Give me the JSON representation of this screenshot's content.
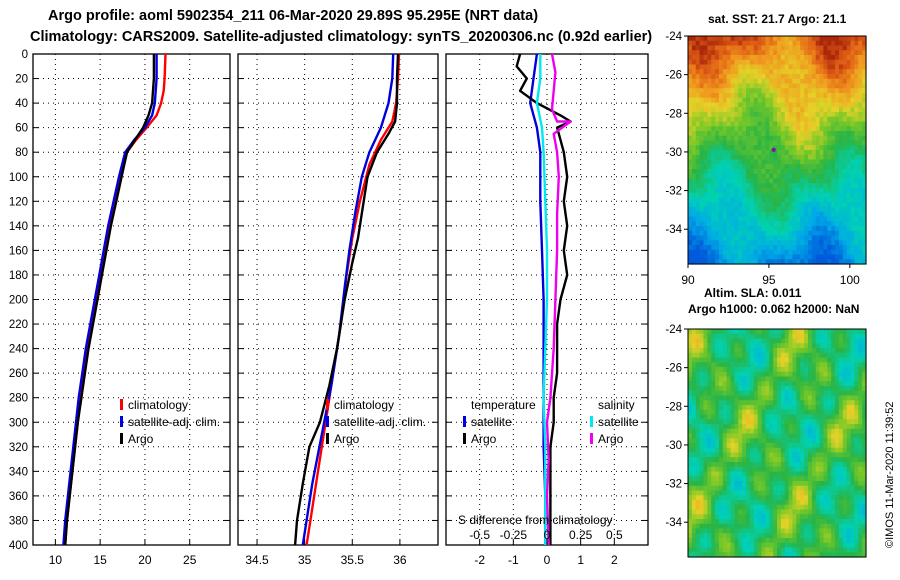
{
  "header": {
    "line1": "Argo profile: aoml 5902354_211 06-Mar-2020 29.89S 95.295E (NRT data)",
    "line2": "Climatology: CARS2009. Satellite-adjusted climatology: synTS_20200306.nc (0.92d earlier)"
  },
  "credit": "©IMOS 11-Mar-2020 11:39:52",
  "colors": {
    "climatology": "#ff0000",
    "satellite": "#0000dd",
    "argo": "#000000",
    "sat_salinity": "#00e8f0",
    "argo_salinity": "#ee00ee"
  },
  "chart_data": [
    {
      "type": "line",
      "name": "temperature-profile",
      "xlim": [
        7.5,
        29.5
      ],
      "xticks": [
        10,
        15,
        20,
        25
      ],
      "xtick_labels": [
        "10",
        "15",
        "20",
        "25"
      ],
      "ylim": [
        0,
        400
      ],
      "yticks": [
        0,
        20,
        40,
        60,
        80,
        100,
        120,
        140,
        160,
        180,
        200,
        220,
        240,
        260,
        280,
        300,
        320,
        340,
        360,
        380,
        400
      ],
      "grid": true,
      "legend": {
        "position": "bottom-right",
        "entries": [
          "climatology",
          "satellite-adj. clim.",
          "Argo"
        ]
      },
      "series": [
        {
          "name": "climatology",
          "color": "#ff0000",
          "points": [
            [
              22.3,
              0
            ],
            [
              22.2,
              20
            ],
            [
              22.1,
              30
            ],
            [
              21.8,
              40
            ],
            [
              21.3,
              50
            ],
            [
              20.2,
              60
            ],
            [
              19.0,
              70
            ],
            [
              18.0,
              80
            ],
            [
              17.3,
              100
            ],
            [
              16.7,
              120
            ],
            [
              16.0,
              140
            ],
            [
              15.5,
              160
            ],
            [
              15.0,
              180
            ],
            [
              14.5,
              200
            ],
            [
              14.0,
              220
            ],
            [
              13.5,
              240
            ],
            [
              13.2,
              260
            ],
            [
              12.8,
              280
            ],
            [
              12.5,
              300
            ],
            [
              12.2,
              320
            ],
            [
              11.9,
              340
            ],
            [
              11.6,
              360
            ],
            [
              11.3,
              380
            ],
            [
              11.1,
              400
            ]
          ]
        },
        {
          "name": "satellite-adj. clim.",
          "color": "#0000dd",
          "points": [
            [
              21.3,
              0
            ],
            [
              21.3,
              20
            ],
            [
              21.2,
              30
            ],
            [
              21.1,
              40
            ],
            [
              20.8,
              50
            ],
            [
              20.0,
              60
            ],
            [
              18.8,
              70
            ],
            [
              17.8,
              80
            ],
            [
              17.1,
              100
            ],
            [
              16.5,
              120
            ],
            [
              15.9,
              140
            ],
            [
              15.4,
              160
            ],
            [
              14.9,
              180
            ],
            [
              14.4,
              200
            ],
            [
              13.9,
              220
            ],
            [
              13.4,
              240
            ],
            [
              13.0,
              260
            ],
            [
              12.6,
              280
            ],
            [
              12.3,
              300
            ],
            [
              12.0,
              320
            ],
            [
              11.7,
              340
            ],
            [
              11.4,
              360
            ],
            [
              11.1,
              380
            ],
            [
              10.9,
              400
            ]
          ]
        },
        {
          "name": "Argo",
          "color": "#000000",
          "points": [
            [
              21.0,
              0
            ],
            [
              21.0,
              20
            ],
            [
              20.9,
              30
            ],
            [
              20.8,
              40
            ],
            [
              20.4,
              50
            ],
            [
              19.8,
              60
            ],
            [
              18.9,
              70
            ],
            [
              18.0,
              80
            ],
            [
              17.4,
              100
            ],
            [
              16.8,
              120
            ],
            [
              16.2,
              140
            ],
            [
              15.7,
              160
            ],
            [
              15.2,
              180
            ],
            [
              14.7,
              200
            ],
            [
              14.2,
              220
            ],
            [
              13.7,
              240
            ],
            [
              13.3,
              260
            ],
            [
              12.9,
              280
            ],
            [
              12.5,
              300
            ],
            [
              12.2,
              320
            ],
            [
              11.9,
              340
            ],
            [
              11.6,
              360
            ],
            [
              11.3,
              380
            ],
            [
              11.1,
              400
            ]
          ]
        }
      ]
    },
    {
      "type": "line",
      "name": "salinity-profile",
      "xlim": [
        34.3,
        36.4
      ],
      "xticks": [
        34.5,
        35,
        35.5,
        36
      ],
      "xtick_labels": [
        "34.5",
        "35",
        "35.5",
        "36"
      ],
      "ylim": [
        0,
        400
      ],
      "grid": true,
      "legend": {
        "position": "bottom-right",
        "entries": [
          "climatology",
          "satellite-adj. clim.",
          "Argo"
        ]
      },
      "series": [
        {
          "name": "climatology",
          "color": "#ff0000",
          "points": [
            [
              35.99,
              0
            ],
            [
              35.98,
              20
            ],
            [
              35.96,
              40
            ],
            [
              35.92,
              55
            ],
            [
              35.8,
              70
            ],
            [
              35.68,
              90
            ],
            [
              35.58,
              120
            ],
            [
              35.5,
              150
            ],
            [
              35.44,
              180
            ],
            [
              35.38,
              220
            ],
            [
              35.3,
              260
            ],
            [
              35.22,
              300
            ],
            [
              35.14,
              340
            ],
            [
              35.06,
              380
            ],
            [
              35.02,
              400
            ]
          ]
        },
        {
          "name": "satellite-adj. clim.",
          "color": "#0000dd",
          "points": [
            [
              35.93,
              0
            ],
            [
              35.92,
              20
            ],
            [
              35.88,
              40
            ],
            [
              35.8,
              60
            ],
            [
              35.68,
              80
            ],
            [
              35.6,
              100
            ],
            [
              35.53,
              130
            ],
            [
              35.47,
              160
            ],
            [
              35.42,
              190
            ],
            [
              35.36,
              230
            ],
            [
              35.28,
              270
            ],
            [
              35.18,
              310
            ],
            [
              35.08,
              350
            ],
            [
              35.0,
              390
            ],
            [
              34.98,
              400
            ]
          ]
        },
        {
          "name": "Argo",
          "color": "#000000",
          "points": [
            [
              35.98,
              0
            ],
            [
              35.97,
              20
            ],
            [
              35.97,
              40
            ],
            [
              35.95,
              55
            ],
            [
              35.88,
              65
            ],
            [
              35.76,
              80
            ],
            [
              35.66,
              100
            ],
            [
              35.6,
              130
            ],
            [
              35.56,
              150
            ],
            [
              35.5,
              170
            ],
            [
              35.42,
              200
            ],
            [
              35.34,
              240
            ],
            [
              35.26,
              270
            ],
            [
              35.16,
              300
            ],
            [
              35.05,
              320
            ],
            [
              34.98,
              350
            ],
            [
              34.92,
              380
            ],
            [
              34.9,
              400
            ]
          ]
        }
      ]
    },
    {
      "type": "line",
      "name": "difference-from-climatology",
      "title": "S difference from climatology",
      "xlim": [
        -3.0,
        3.0
      ],
      "xticks": [
        -2,
        -1,
        0,
        1,
        2
      ],
      "xtick_labels": [
        "-2",
        "-1",
        "0",
        "1",
        "2"
      ],
      "secondary_xticks": [
        -0.5,
        -0.25,
        0,
        0.25,
        0.5
      ],
      "secondary_xtick_labels": [
        "-0.5",
        "-0.25",
        "0",
        "0.25",
        "0.5"
      ],
      "secondary_scale_factor": 4,
      "ylim": [
        0,
        400
      ],
      "grid": true,
      "legend_temperature": {
        "title": "temperature",
        "entries": [
          "satellite",
          "Argo"
        ]
      },
      "legend_salinity": {
        "title": "salinity",
        "entries": [
          "satellite",
          "Argo"
        ]
      },
      "series": [
        {
          "name": "temperature satellite",
          "color": "#0000dd",
          "points": [
            [
              -0.3,
              0
            ],
            [
              -0.4,
              20
            ],
            [
              -0.5,
              40
            ],
            [
              -0.3,
              60
            ],
            [
              -0.2,
              80
            ],
            [
              -0.2,
              120
            ],
            [
              -0.15,
              160
            ],
            [
              -0.1,
              200
            ],
            [
              -0.1,
              240
            ],
            [
              -0.1,
              280
            ],
            [
              -0.1,
              320
            ],
            [
              -0.05,
              360
            ],
            [
              -0.05,
              400
            ]
          ]
        },
        {
          "name": "temperature Argo",
          "color": "#000000",
          "points": [
            [
              -0.8,
              0
            ],
            [
              -0.9,
              10
            ],
            [
              -0.6,
              20
            ],
            [
              -0.8,
              30
            ],
            [
              -0.3,
              40
            ],
            [
              0.4,
              50
            ],
            [
              0.7,
              55
            ],
            [
              0.3,
              60
            ],
            [
              0.4,
              70
            ],
            [
              0.5,
              80
            ],
            [
              0.6,
              100
            ],
            [
              0.5,
              120
            ],
            [
              0.6,
              140
            ],
            [
              0.5,
              160
            ],
            [
              0.6,
              180
            ],
            [
              0.4,
              200
            ],
            [
              0.3,
              220
            ],
            [
              0.3,
              240
            ],
            [
              0.3,
              260
            ],
            [
              0.2,
              280
            ],
            [
              0.2,
              300
            ],
            [
              0.1,
              320
            ],
            [
              0.1,
              340
            ],
            [
              0.1,
              360
            ],
            [
              0.1,
              380
            ],
            [
              0.1,
              400
            ]
          ]
        },
        {
          "name": "salinity satellite",
          "color": "#00e8f0",
          "points": [
            [
              -0.2,
              0
            ],
            [
              -0.2,
              20
            ],
            [
              -0.3,
              40
            ],
            [
              -0.15,
              60
            ],
            [
              -0.1,
              80
            ],
            [
              -0.05,
              120
            ],
            [
              0.0,
              160
            ],
            [
              0.0,
              200
            ],
            [
              -0.05,
              240
            ],
            [
              -0.1,
              280
            ],
            [
              -0.05,
              320
            ],
            [
              -0.05,
              360
            ],
            [
              -0.05,
              400
            ]
          ]
        },
        {
          "name": "salinity Argo",
          "color": "#ee00ee",
          "points": [
            [
              0.15,
              0
            ],
            [
              0.25,
              15
            ],
            [
              0.2,
              30
            ],
            [
              0.15,
              45
            ],
            [
              0.3,
              55
            ],
            [
              0.7,
              55
            ],
            [
              0.2,
              65
            ],
            [
              0.3,
              80
            ],
            [
              0.35,
              100
            ],
            [
              0.3,
              130
            ],
            [
              0.3,
              160
            ],
            [
              0.25,
              200
            ],
            [
              0.2,
              240
            ],
            [
              0.1,
              280
            ],
            [
              0.0,
              300
            ],
            [
              0.05,
              330
            ],
            [
              0.0,
              360
            ],
            [
              0.05,
              400
            ]
          ]
        }
      ]
    },
    {
      "type": "heatmap",
      "name": "satellite-sst-map",
      "title": "sat. SST: 21.7 Argo: 21.1",
      "xlim": [
        90,
        101
      ],
      "ylim": [
        -35.8,
        -24
      ],
      "xticks": [
        90,
        95,
        100
      ],
      "xtick_labels": [
        "90",
        "95",
        "100"
      ],
      "yticks": [
        -24,
        -26,
        -28,
        -30,
        -32,
        -34
      ],
      "ytick_labels": [
        "-24",
        "-26",
        "-28",
        "-30",
        "-32",
        "-34"
      ],
      "argo_position": [
        95.295,
        -29.89
      ]
    },
    {
      "type": "heatmap",
      "name": "altimetry-sla-map",
      "title_line1": "Altim. SLA: 0.011",
      "title_line2": "Argo h1000: 0.062 h2000: NaN",
      "xlim": [
        90,
        101
      ],
      "ylim": [
        -35.8,
        -24
      ],
      "yticks": [
        -24,
        -26,
        -28,
        -30,
        -32,
        -34
      ],
      "ytick_labels": [
        "-24",
        "-26",
        "-28",
        "-30",
        "-32",
        "-34"
      ]
    }
  ]
}
